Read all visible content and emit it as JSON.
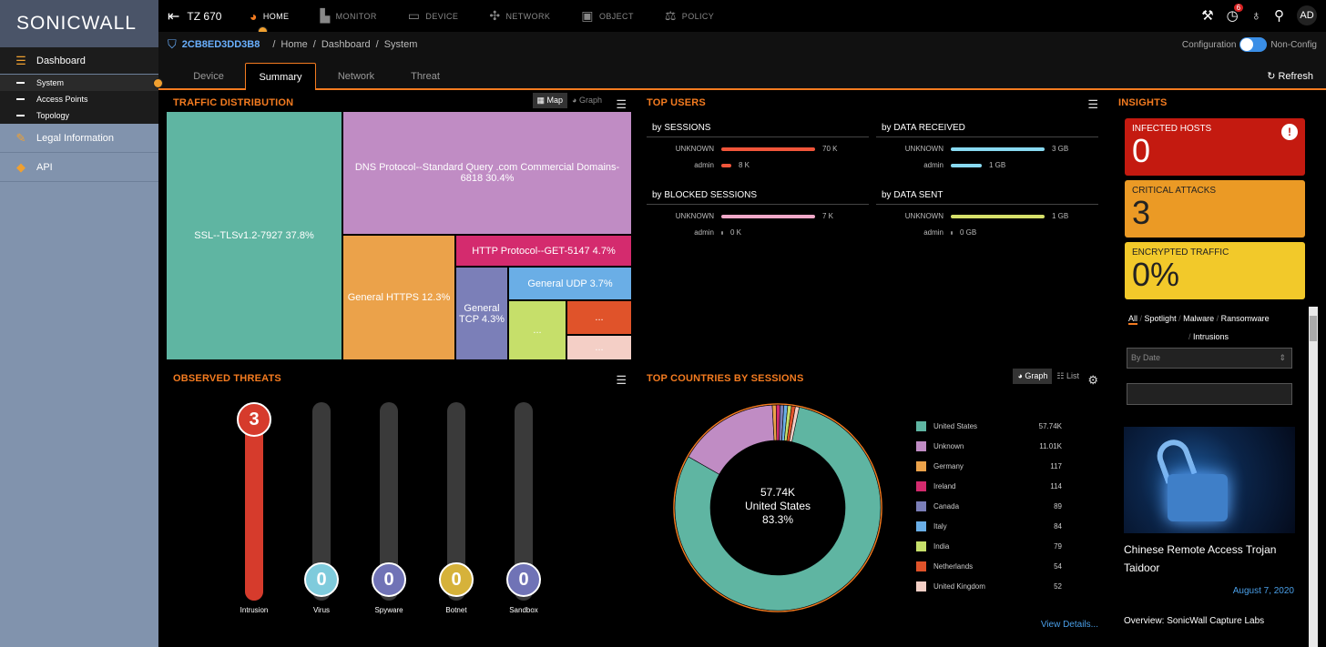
{
  "sidebar": {
    "logo_sonic": "SONIC",
    "logo_wall": "WALL",
    "dashboard": "Dashboard",
    "system": "System",
    "access_points": "Access Points",
    "topology": "Topology",
    "legal": "Legal Information",
    "api": "API"
  },
  "topnav": {
    "device": "TZ 670",
    "home": "HOME",
    "monitor": "MONITOR",
    "device_tab": "DEVICE",
    "network": "NETWORK",
    "object": "OBJECT",
    "policy": "POLICY",
    "notif_count": "6",
    "avatar": "AD"
  },
  "breadcrumb": {
    "serial": "2CB8ED3DD3B8",
    "items": [
      "Home",
      "Dashboard",
      "System"
    ],
    "config_label": "Configuration",
    "nonconfig_label": "Non-Config"
  },
  "tabs": [
    "Device",
    "Summary",
    "Network",
    "Threat"
  ],
  "refresh": "Refresh",
  "traffic": {
    "title": "TRAFFIC DISTRIBUTION",
    "map": "Map",
    "graph": "Graph",
    "cells": [
      {
        "label": "SSL--TLSv1.2-7927 37.8%",
        "color": "#5fb5a2"
      },
      {
        "label": "DNS Protocol--Standard Query .com Commercial Domains-6818 30.4%",
        "color": "#c08cc4"
      },
      {
        "label": "General HTTPS 12.3%",
        "color": "#eba24a"
      },
      {
        "label": "HTTP Protocol--GET-5147 4.7%",
        "color": "#d42b6e"
      },
      {
        "label": "General TCP 4.3%",
        "color": "#7b7fb8"
      },
      {
        "label": "General UDP 3.7%",
        "color": "#6aaee6"
      },
      {
        "label": "...",
        "color": "#c6df6a"
      },
      {
        "label": "...",
        "color": "#e0532a"
      },
      {
        "label": "...",
        "color": "#f4cfc6"
      }
    ]
  },
  "top_users": {
    "title": "TOP USERS",
    "sessions": {
      "head": "by SESSIONS",
      "rows": [
        {
          "name": "UNKNOWN",
          "value": "70 K",
          "frac": 1.0
        },
        {
          "name": "admin",
          "value": "8 K",
          "frac": 0.11
        }
      ]
    },
    "received": {
      "head": "by DATA RECEIVED",
      "rows": [
        {
          "name": "UNKNOWN",
          "value": "3 GB",
          "frac": 1.0
        },
        {
          "name": "admin",
          "value": "1 GB",
          "frac": 0.33
        }
      ]
    },
    "blocked": {
      "head": "by BLOCKED SESSIONS",
      "rows": [
        {
          "name": "UNKNOWN",
          "value": "7 K",
          "frac": 1.0
        },
        {
          "name": "admin",
          "value": "0 K",
          "frac": 0.0
        }
      ]
    },
    "sent": {
      "head": "by DATA SENT",
      "rows": [
        {
          "name": "UNKNOWN",
          "value": "1 GB",
          "frac": 1.0
        },
        {
          "name": "admin",
          "value": "0 GB",
          "frac": 0.0
        }
      ]
    },
    "colors": {
      "sessions": "#f0553a",
      "received": "#88d9f0",
      "blocked": "#f0a8c8",
      "sent": "#d6e06a"
    }
  },
  "threats": {
    "title": "OBSERVED THREATS",
    "items": [
      {
        "label": "Intrusion",
        "value": "3",
        "color": "#d63b2c",
        "frac": 1.0
      },
      {
        "label": "Virus",
        "value": "0",
        "color": "#7fcbdc",
        "frac": 0
      },
      {
        "label": "Spyware",
        "value": "0",
        "color": "#7073b6",
        "frac": 0
      },
      {
        "label": "Botnet",
        "value": "0",
        "color": "#d6b23a",
        "frac": 0
      },
      {
        "label": "Sandbox",
        "value": "0",
        "color": "#7073b6",
        "frac": 0
      }
    ]
  },
  "countries": {
    "title": "TOP COUNTRIES BY SESSIONS",
    "graph": "Graph",
    "list": "List",
    "center_value": "57.74K",
    "center_name": "United States",
    "center_pct": "83.3%",
    "view_details": "View Details...",
    "items": [
      {
        "name": "United States",
        "label": "57.74K",
        "value": 57740,
        "color": "#5fb5a2"
      },
      {
        "name": "Unknown",
        "label": "11.01K",
        "value": 11010,
        "color": "#c08cc4"
      },
      {
        "name": "Germany",
        "label": "117",
        "value": 117,
        "color": "#eba24a"
      },
      {
        "name": "Ireland",
        "label": "114",
        "value": 114,
        "color": "#d42b6e"
      },
      {
        "name": "Canada",
        "label": "89",
        "value": 89,
        "color": "#7b7fb8"
      },
      {
        "name": "Italy",
        "label": "84",
        "value": 84,
        "color": "#6aaee6"
      },
      {
        "name": "India",
        "label": "79",
        "value": 79,
        "color": "#c6df6a"
      },
      {
        "name": "Netherlands",
        "label": "54",
        "value": 54,
        "color": "#e0532a"
      },
      {
        "name": "United Kingdom",
        "label": "52",
        "value": 52,
        "color": "#f4cfc6"
      }
    ]
  },
  "insights": {
    "title": "INSIGHTS",
    "infected": {
      "label": "INFECTED HOSTS",
      "value": "0",
      "color": "#c41a10"
    },
    "critical": {
      "label": "CRITICAL ATTACKS",
      "value": "3",
      "color": "#eb9a25"
    },
    "encrypted": {
      "label": "ENCRYPTED TRAFFIC",
      "value": "0%",
      "color": "#f2c92a"
    },
    "filters": [
      "All",
      "Spotlight",
      "Malware",
      "Ransomware",
      "Intrusions"
    ],
    "sort": "By Date",
    "article_title": "Chinese Remote Access Trojan Taidoor",
    "article_date": "August 7, 2020",
    "article_overview": "Overview: SonicWall Capture Labs"
  }
}
